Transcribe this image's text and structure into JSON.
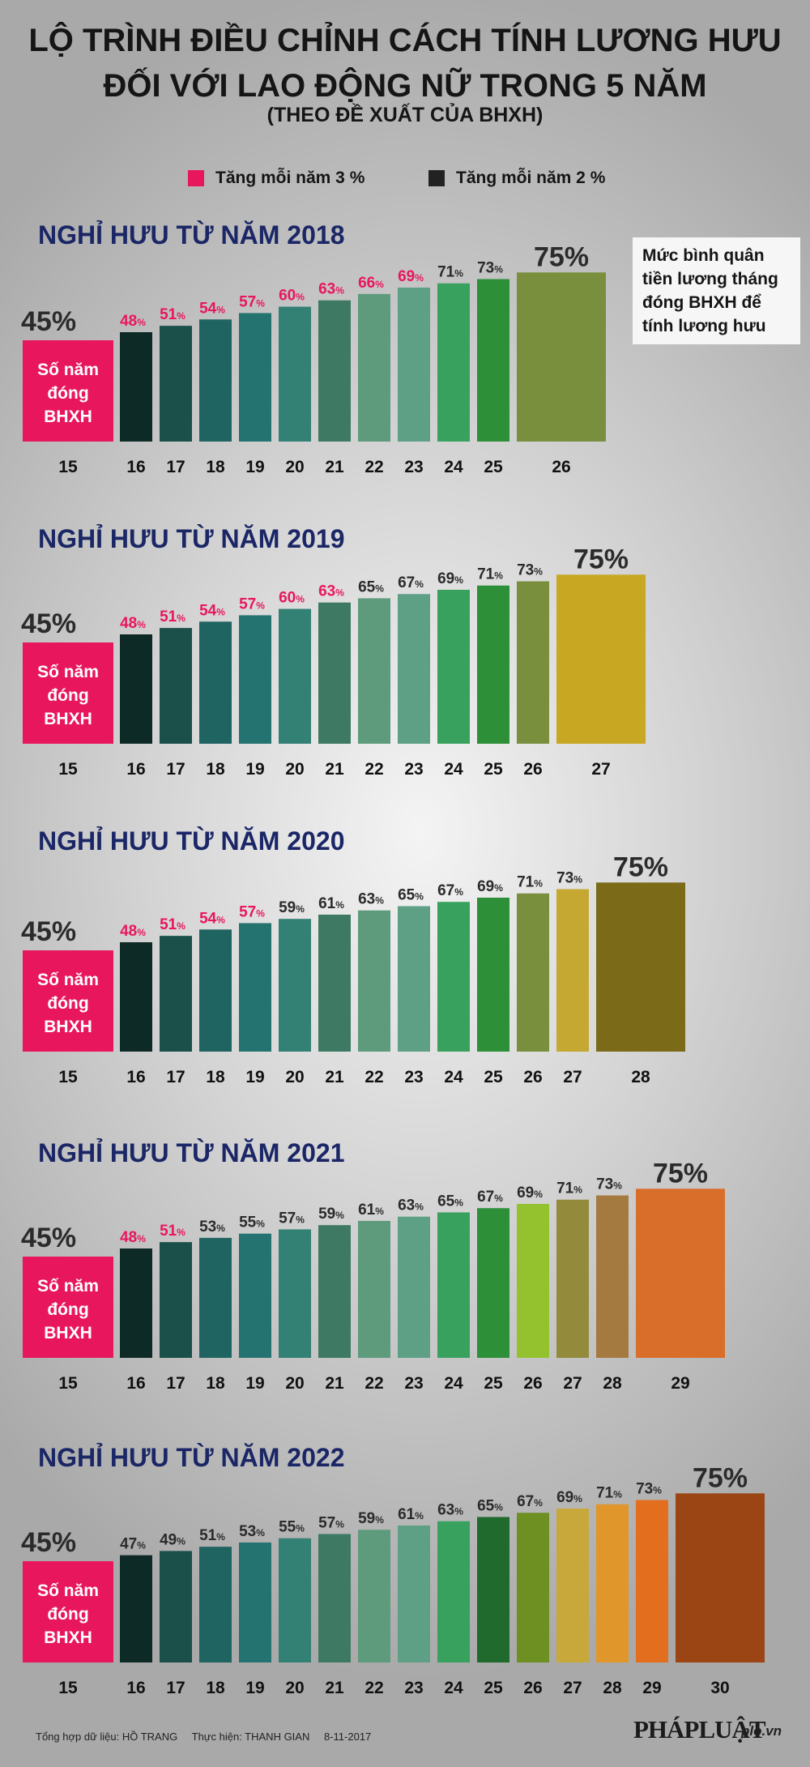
{
  "header": {
    "title_line1": "LỘ TRÌNH ĐIỀU CHỈNH CÁCH TÍNH LƯƠNG HƯU",
    "title_line2": "ĐỐI VỚI LAO ĐỘNG NỮ TRONG 5 NĂM",
    "subtitle": "(THEO ĐỀ XUẤT CỦA BHXH)"
  },
  "legend": {
    "pink_label": "Tăng mỗi năm 3 %",
    "dark_label": "Tăng mỗi năm 2 %",
    "pink_color": "#e8175d",
    "dark_color": "#222222"
  },
  "note": "Mức bình quân tiền lương tháng đóng BHXH để tính lương hưu",
  "base_box_label": [
    "Số năm",
    "đóng",
    "BHXH"
  ],
  "footer": {
    "source": "Tổng hợp dữ liệu: HỒ TRANG",
    "author": "Thực hiện: THANH GIAN",
    "date": "8-11-2017",
    "logo": "PHÁPLUẬT",
    "site": "plo.vn"
  },
  "chart_data": [
    {
      "type": "bar",
      "title": "NGHỈ HƯU TỪ NĂM 2018",
      "categories": [
        "15",
        "16",
        "17",
        "18",
        "19",
        "20",
        "21",
        "22",
        "23",
        "24",
        "25",
        "26"
      ],
      "values": [
        45,
        48,
        51,
        54,
        57,
        60,
        63,
        66,
        69,
        71,
        73,
        75
      ],
      "increment": [
        0,
        3,
        3,
        3,
        3,
        3,
        3,
        3,
        3,
        2,
        2,
        2
      ],
      "colors": [
        "#e8175d",
        "#0e2a26",
        "#1b4f49",
        "#1f6460",
        "#257371",
        "#338075",
        "#3e7a63",
        "#5e9b7c",
        "#5ea086",
        "#38a15e",
        "#2d8f38",
        "#7a8f3d"
      ],
      "xlabel": "Số năm đóng BHXH",
      "ylabel": "Mức bình quân tiền lương tháng đóng BHXH để tính lương hưu"
    },
    {
      "type": "bar",
      "title": "NGHỈ HƯU TỪ NĂM 2019",
      "categories": [
        "15",
        "16",
        "17",
        "18",
        "19",
        "20",
        "21",
        "22",
        "23",
        "24",
        "25",
        "26",
        "27"
      ],
      "values": [
        45,
        48,
        51,
        54,
        57,
        60,
        63,
        65,
        67,
        69,
        71,
        73,
        75
      ],
      "increment": [
        0,
        3,
        3,
        3,
        3,
        3,
        3,
        2,
        2,
        2,
        2,
        2,
        2
      ],
      "colors": [
        "#e8175d",
        "#0e2a26",
        "#1b4f49",
        "#1f6460",
        "#257371",
        "#338075",
        "#3e7a63",
        "#5e9b7c",
        "#5ea086",
        "#38a15e",
        "#2d8f38",
        "#7a8f3d",
        "#c8a823"
      ]
    },
    {
      "type": "bar",
      "title": "NGHỈ HƯU TỪ NĂM 2020",
      "categories": [
        "15",
        "16",
        "17",
        "18",
        "19",
        "20",
        "21",
        "22",
        "23",
        "24",
        "25",
        "26",
        "27",
        "28"
      ],
      "values": [
        45,
        48,
        51,
        54,
        57,
        59,
        61,
        63,
        65,
        67,
        69,
        71,
        73,
        75
      ],
      "increment": [
        0,
        3,
        3,
        3,
        3,
        2,
        2,
        2,
        2,
        2,
        2,
        2,
        2,
        2
      ],
      "colors": [
        "#e8175d",
        "#0e2a26",
        "#1b4f49",
        "#1f6460",
        "#257371",
        "#338075",
        "#3e7a63",
        "#5e9b7c",
        "#5ea086",
        "#38a15e",
        "#2d8f38",
        "#7a8f3d",
        "#c4a832",
        "#7b6a18"
      ]
    },
    {
      "type": "bar",
      "title": "NGHỈ HƯU TỪ NĂM 2021",
      "categories": [
        "15",
        "16",
        "17",
        "18",
        "19",
        "20",
        "21",
        "22",
        "23",
        "24",
        "25",
        "26",
        "27",
        "28",
        "29"
      ],
      "values": [
        45,
        48,
        51,
        53,
        55,
        57,
        59,
        61,
        63,
        65,
        67,
        69,
        71,
        73,
        75
      ],
      "increment": [
        0,
        3,
        3,
        2,
        2,
        2,
        2,
        2,
        2,
        2,
        2,
        2,
        2,
        2,
        2
      ],
      "colors": [
        "#e8175d",
        "#0e2a26",
        "#1b4f49",
        "#1f6460",
        "#257371",
        "#338075",
        "#3e7a63",
        "#5e9b7c",
        "#5ea086",
        "#38a15e",
        "#2d8f38",
        "#93c22e",
        "#938a3c",
        "#a57a40",
        "#d96e2a"
      ]
    },
    {
      "type": "bar",
      "title": "NGHỈ HƯU TỪ NĂM 2022",
      "categories": [
        "15",
        "16",
        "17",
        "18",
        "19",
        "20",
        "21",
        "22",
        "23",
        "24",
        "25",
        "26",
        "27",
        "28",
        "29",
        "30"
      ],
      "values": [
        45,
        47,
        49,
        51,
        53,
        55,
        57,
        59,
        61,
        63,
        65,
        67,
        69,
        71,
        73,
        75
      ],
      "increment": [
        0,
        2,
        2,
        2,
        2,
        2,
        2,
        2,
        2,
        2,
        2,
        2,
        2,
        2,
        2,
        2
      ],
      "colors": [
        "#e8175d",
        "#0e2a26",
        "#1b4f49",
        "#1f6460",
        "#257371",
        "#338075",
        "#3e7a63",
        "#5e9b7c",
        "#5ea086",
        "#38a15e",
        "#1f6a2c",
        "#6e8f22",
        "#c8a83a",
        "#e0962a",
        "#e36e1e",
        "#9b4514"
      ]
    }
  ]
}
